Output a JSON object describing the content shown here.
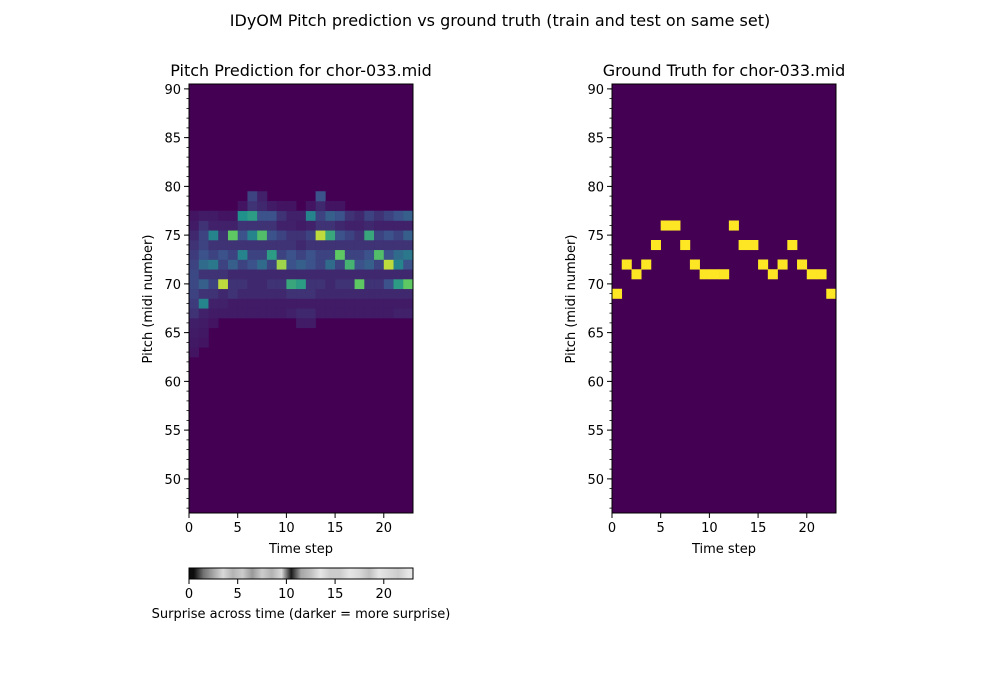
{
  "figure": {
    "suptitle": "IDyOM Pitch prediction vs ground truth (train and test on same set)"
  },
  "colors": {
    "viridis_low": "#440154",
    "viridis_mid": "#21918c",
    "viridis_high": "#fde725",
    "gray_dark": "#000000",
    "gray_light": "#ffffff"
  },
  "chart_data": [
    {
      "type": "heatmap",
      "title": "Pitch Prediction for chor-033.mid",
      "xlabel": "Time step",
      "ylabel": "Pitch (midi number)",
      "xlim": [
        0,
        23
      ],
      "ylim": [
        47,
        91
      ],
      "x_ticks": [
        0,
        5,
        10,
        15,
        20
      ],
      "y_ticks": [
        50,
        55,
        60,
        65,
        70,
        75,
        80,
        85,
        90
      ],
      "colormap": "viridis",
      "value_range": [
        0,
        1
      ],
      "cells": [
        {
          "t": 0,
          "values": {
            "63": 0.06,
            "64": 0.07,
            "65": 0.08,
            "66": 0.09,
            "67": 0.15,
            "68": 0.18,
            "69": 0.2,
            "70": 0.22,
            "71": 0.22,
            "72": 0.2,
            "73": 0.18,
            "74": 0.15,
            "75": 0.12,
            "76": 0.08,
            "77": 0.06
          }
        },
        {
          "t": 1,
          "values": {
            "64": 0.06,
            "65": 0.07,
            "66": 0.08,
            "67": 0.1,
            "68": 0.45,
            "69": 0.15,
            "70": 0.3,
            "71": 0.15,
            "72": 0.35,
            "73": 0.25,
            "74": 0.2,
            "75": 0.2,
            "76": 0.15,
            "77": 0.08
          }
        },
        {
          "t": 2,
          "values": {
            "66": 0.06,
            "67": 0.08,
            "68": 0.1,
            "69": 0.15,
            "70": 0.2,
            "71": 0.15,
            "72": 0.4,
            "73": 0.2,
            "74": 0.15,
            "75": 0.45,
            "76": 0.1,
            "77": 0.08
          }
        },
        {
          "t": 3,
          "values": {
            "67": 0.08,
            "68": 0.1,
            "69": 0.12,
            "70": 0.9,
            "71": 0.15,
            "72": 0.2,
            "73": 0.25,
            "74": 0.15,
            "75": 0.15,
            "76": 0.1,
            "77": 0.06
          }
        },
        {
          "t": 4,
          "values": {
            "67": 0.08,
            "68": 0.08,
            "69": 0.15,
            "70": 0.15,
            "71": 0.12,
            "72": 0.3,
            "73": 0.2,
            "74": 0.15,
            "75": 0.75,
            "76": 0.1,
            "77": 0.06
          }
        },
        {
          "t": 5,
          "values": {
            "67": 0.08,
            "68": 0.08,
            "69": 0.12,
            "70": 0.15,
            "71": 0.12,
            "72": 0.2,
            "73": 0.45,
            "74": 0.15,
            "75": 0.25,
            "76": 0.15,
            "77": 0.5,
            "78": 0.06
          }
        },
        {
          "t": 6,
          "values": {
            "67": 0.08,
            "68": 0.08,
            "69": 0.12,
            "70": 0.12,
            "71": 0.12,
            "72": 0.25,
            "73": 0.2,
            "74": 0.15,
            "75": 0.45,
            "76": 0.15,
            "77": 0.55,
            "78": 0.15,
            "79": 0.2
          }
        },
        {
          "t": 7,
          "values": {
            "67": 0.08,
            "68": 0.08,
            "69": 0.12,
            "70": 0.12,
            "71": 0.12,
            "72": 0.35,
            "73": 0.2,
            "74": 0.15,
            "75": 0.7,
            "76": 0.15,
            "77": 0.25,
            "78": 0.12,
            "79": 0.1
          }
        },
        {
          "t": 8,
          "values": {
            "67": 0.08,
            "68": 0.08,
            "69": 0.12,
            "70": 0.15,
            "71": 0.12,
            "72": 0.2,
            "73": 0.55,
            "74": 0.15,
            "75": 0.25,
            "76": 0.15,
            "77": 0.25,
            "78": 0.08
          }
        },
        {
          "t": 9,
          "values": {
            "67": 0.08,
            "68": 0.08,
            "69": 0.12,
            "70": 0.15,
            "71": 0.12,
            "72": 0.85,
            "73": 0.2,
            "74": 0.15,
            "75": 0.2,
            "76": 0.1,
            "77": 0.15,
            "78": 0.06
          }
        },
        {
          "t": 10,
          "values": {
            "67": 0.1,
            "68": 0.08,
            "69": 0.15,
            "70": 0.6,
            "71": 0.12,
            "72": 0.25,
            "73": 0.25,
            "74": 0.15,
            "75": 0.15,
            "76": 0.1,
            "77": 0.1,
            "78": 0.06
          }
        },
        {
          "t": 11,
          "values": {
            "66": 0.08,
            "67": 0.12,
            "68": 0.08,
            "69": 0.15,
            "70": 0.55,
            "71": 0.12,
            "72": 0.3,
            "73": 0.2,
            "74": 0.12,
            "75": 0.15,
            "76": 0.08,
            "77": 0.1
          }
        },
        {
          "t": 12,
          "values": {
            "66": 0.08,
            "67": 0.12,
            "68": 0.08,
            "69": 0.15,
            "70": 0.15,
            "71": 0.12,
            "72": 0.25,
            "73": 0.25,
            "74": 0.15,
            "75": 0.2,
            "76": 0.1,
            "77": 0.45,
            "78": 0.06
          }
        },
        {
          "t": 13,
          "values": {
            "67": 0.08,
            "68": 0.08,
            "69": 0.12,
            "70": 0.15,
            "71": 0.12,
            "72": 0.2,
            "73": 0.2,
            "74": 0.15,
            "75": 0.9,
            "76": 0.15,
            "77": 0.2,
            "78": 0.12,
            "79": 0.25
          }
        },
        {
          "t": 14,
          "values": {
            "67": 0.08,
            "68": 0.08,
            "69": 0.12,
            "70": 0.12,
            "71": 0.12,
            "72": 0.35,
            "73": 0.2,
            "74": 0.15,
            "75": 0.6,
            "76": 0.15,
            "77": 0.3,
            "78": 0.06
          }
        },
        {
          "t": 15,
          "values": {
            "67": 0.08,
            "68": 0.08,
            "69": 0.12,
            "70": 0.15,
            "71": 0.12,
            "72": 0.2,
            "73": 0.75,
            "74": 0.15,
            "75": 0.25,
            "76": 0.12,
            "77": 0.25,
            "78": 0.06
          }
        },
        {
          "t": 16,
          "values": {
            "67": 0.08,
            "68": 0.08,
            "69": 0.12,
            "70": 0.15,
            "71": 0.12,
            "72": 0.65,
            "73": 0.2,
            "74": 0.15,
            "75": 0.2,
            "76": 0.1,
            "77": 0.15
          }
        },
        {
          "t": 17,
          "values": {
            "67": 0.08,
            "68": 0.08,
            "69": 0.12,
            "70": 0.75,
            "71": 0.12,
            "72": 0.25,
            "73": 0.2,
            "74": 0.15,
            "75": 0.15,
            "76": 0.1,
            "77": 0.12
          }
        },
        {
          "t": 18,
          "values": {
            "67": 0.08,
            "68": 0.08,
            "69": 0.12,
            "70": 0.15,
            "71": 0.12,
            "72": 0.3,
            "73": 0.25,
            "74": 0.15,
            "75": 0.6,
            "76": 0.12,
            "77": 0.2
          }
        },
        {
          "t": 19,
          "values": {
            "67": 0.08,
            "68": 0.08,
            "69": 0.12,
            "70": 0.15,
            "71": 0.12,
            "72": 0.2,
            "73": 0.7,
            "74": 0.15,
            "75": 0.2,
            "76": 0.1,
            "77": 0.15
          }
        },
        {
          "t": 20,
          "values": {
            "67": 0.08,
            "68": 0.08,
            "69": 0.12,
            "70": 0.25,
            "71": 0.12,
            "72": 0.9,
            "73": 0.25,
            "74": 0.15,
            "75": 0.25,
            "76": 0.1,
            "77": 0.2
          }
        },
        {
          "t": 21,
          "values": {
            "67": 0.1,
            "68": 0.08,
            "69": 0.12,
            "70": 0.55,
            "71": 0.12,
            "72": 0.45,
            "73": 0.35,
            "74": 0.15,
            "75": 0.2,
            "76": 0.1,
            "77": 0.25
          }
        },
        {
          "t": 22,
          "values": {
            "67": 0.1,
            "68": 0.08,
            "69": 0.12,
            "70": 0.75,
            "71": 0.12,
            "72": 0.25,
            "73": 0.4,
            "74": 0.15,
            "75": 0.3,
            "76": 0.1,
            "77": 0.3
          }
        }
      ]
    },
    {
      "type": "heatmap",
      "title": "Ground Truth for chor-033.mid",
      "xlabel": "Time step",
      "ylabel": "Pitch (midi number)",
      "xlim": [
        0,
        23
      ],
      "ylim": [
        47,
        91
      ],
      "x_ticks": [
        0,
        5,
        10,
        15,
        20
      ],
      "y_ticks": [
        50,
        55,
        60,
        65,
        70,
        75,
        80,
        85,
        90
      ],
      "colormap": "viridis",
      "notes": [
        {
          "t": 0,
          "pitch": 69
        },
        {
          "t": 1,
          "pitch": 72
        },
        {
          "t": 2,
          "pitch": 71
        },
        {
          "t": 3,
          "pitch": 72
        },
        {
          "t": 4,
          "pitch": 74
        },
        {
          "t": 5,
          "pitch": 76
        },
        {
          "t": 6,
          "pitch": 76
        },
        {
          "t": 7,
          "pitch": 74
        },
        {
          "t": 8,
          "pitch": 72
        },
        {
          "t": 9,
          "pitch": 71
        },
        {
          "t": 10,
          "pitch": 71
        },
        {
          "t": 11,
          "pitch": 71
        },
        {
          "t": 12,
          "pitch": 76
        },
        {
          "t": 13,
          "pitch": 74
        },
        {
          "t": 14,
          "pitch": 74
        },
        {
          "t": 15,
          "pitch": 72
        },
        {
          "t": 16,
          "pitch": 71
        },
        {
          "t": 17,
          "pitch": 72
        },
        {
          "t": 18,
          "pitch": 74
        },
        {
          "t": 19,
          "pitch": 72
        },
        {
          "t": 20,
          "pitch": 71
        },
        {
          "t": 21,
          "pitch": 71
        },
        {
          "t": 22,
          "pitch": 69
        }
      ]
    },
    {
      "type": "heatmap",
      "title": "",
      "xlabel": "Surprise across time (darker = more surprise)",
      "ylabel": "",
      "xlim": [
        0,
        23
      ],
      "x_ticks": [
        0,
        5,
        10,
        15,
        20
      ],
      "colormap": "gray",
      "surprise": [
        0.95,
        0.55,
        0.35,
        0.15,
        0.3,
        0.2,
        0.4,
        0.2,
        0.3,
        0.15,
        0.9,
        0.35,
        0.25,
        0.1,
        0.2,
        0.2,
        0.1,
        0.15,
        0.25,
        0.1,
        0.15,
        0.2,
        0.1
      ]
    }
  ]
}
